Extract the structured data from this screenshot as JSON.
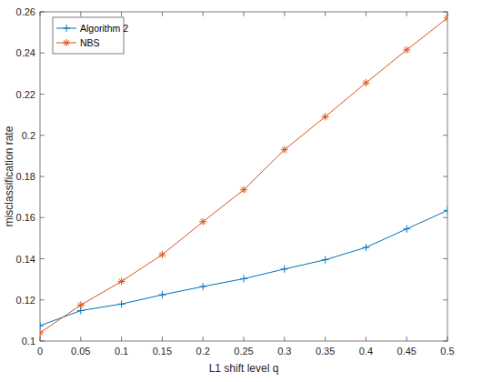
{
  "chart_data": {
    "type": "line",
    "x_label": "L1 shift level q",
    "y_label": "misclassification rate",
    "x": [
      0,
      0.05,
      0.1,
      0.15,
      0.2,
      0.25,
      0.3,
      0.35,
      0.4,
      0.45,
      0.5
    ],
    "series": [
      {
        "name": "Algorithm 2",
        "color": "#0072BD",
        "marker": "plus",
        "line_style": "solid",
        "values": [
          0.1075,
          0.1148,
          0.118,
          0.1225,
          0.1265,
          0.1303,
          0.135,
          0.1395,
          0.1455,
          0.1545,
          0.1635
        ]
      },
      {
        "name": "NBS",
        "color": "#D95319",
        "marker": "star",
        "line_style": "solid",
        "values": [
          0.104,
          0.1175,
          0.129,
          0.142,
          0.158,
          0.1735,
          0.193,
          0.209,
          0.2255,
          0.2415,
          0.257
        ]
      }
    ],
    "xlim": [
      0,
      0.5
    ],
    "xticks": [
      0,
      0.05,
      0.1,
      0.15,
      0.2,
      0.25,
      0.3,
      0.35,
      0.4,
      0.45,
      0.5
    ],
    "ylim": [
      0.1,
      0.26
    ],
    "yticks": [
      0.1,
      0.12,
      0.14,
      0.16,
      0.18,
      0.2,
      0.22,
      0.24,
      0.26
    ],
    "grid": false,
    "legend": "upper left"
  }
}
